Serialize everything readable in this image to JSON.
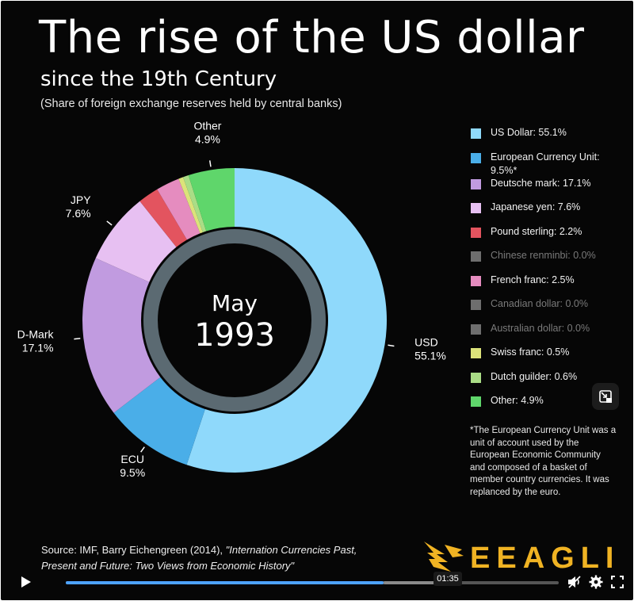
{
  "title": "The rise of the US dollar",
  "subtitle": "since the 19th Century",
  "note": "(Share of foreign exchange reserves held by central banks)",
  "center": {
    "month": "May",
    "year": "1993"
  },
  "chart_data": {
    "type": "pie",
    "title": "The rise of the US dollar",
    "subtitle": "since the 19th Century",
    "categories": [
      "US Dollar",
      "European Currency Unit",
      "Deutsche mark",
      "Japanese yen",
      "Pound sterling",
      "Chinese renminbi",
      "French franc",
      "Canadian dollar",
      "Australian dollar",
      "Swiss franc",
      "Dutch guilder",
      "Other"
    ],
    "values": [
      55.1,
      9.5,
      17.1,
      7.6,
      2.2,
      0.0,
      2.5,
      0.0,
      0.0,
      0.5,
      0.6,
      4.9
    ],
    "colors": [
      "#8fd9fb",
      "#4aaee8",
      "#c19be0",
      "#e7c0f2",
      "#e3545f",
      "#6e6e6e",
      "#e58cbf",
      "#6e6e6e",
      "#6e6e6e",
      "#dce37a",
      "#aadd86",
      "#5fd66b"
    ],
    "labels": [
      {
        "cat": "US Dollar",
        "name": "USD",
        "value": "55.1%"
      },
      {
        "cat": "European Currency Unit",
        "name": "ECU",
        "value": "9.5%"
      },
      {
        "cat": "Deutsche mark",
        "name": "D-Mark",
        "value": "17.1%"
      },
      {
        "cat": "Japanese yen",
        "name": "JPY",
        "value": "7.6%"
      },
      {
        "cat": "Other",
        "name": "Other",
        "value": "4.9%"
      }
    ],
    "legend_position": "right",
    "date": "May 1993"
  },
  "legend": [
    {
      "label": "US Dollar: 55.1%",
      "color": "#8fd9fb",
      "dim": false
    },
    {
      "label": "European Currency Unit: 9.5%*",
      "color": "#4aaee8",
      "dim": false
    },
    {
      "label": "Deutsche mark: 17.1%",
      "color": "#c19be0",
      "dim": false
    },
    {
      "label": "Japanese yen: 7.6%",
      "color": "#e7c0f2",
      "dim": false
    },
    {
      "label": "Pound sterling: 2.2%",
      "color": "#e3545f",
      "dim": false
    },
    {
      "label": "Chinese renminbi: 0.0%",
      "color": "#6e6e6e",
      "dim": true
    },
    {
      "label": "French franc: 2.5%",
      "color": "#e58cbf",
      "dim": false
    },
    {
      "label": "Canadian dollar: 0.0%",
      "color": "#6e6e6e",
      "dim": true
    },
    {
      "label": "Australian dollar: 0.0%",
      "color": "#6e6e6e",
      "dim": true
    },
    {
      "label": "Swiss franc: 0.5%",
      "color": "#dce37a",
      "dim": false
    },
    {
      "label": "Dutch guilder: 0.6%",
      "color": "#aadd86",
      "dim": false
    },
    {
      "label": "Other: 4.9%",
      "color": "#5fd66b",
      "dim": false
    }
  ],
  "footnote": "*The European Currency Unit was a unit of account used by the European Economic Community and composed of a basket of member country currencies. It was replanced by the euro.",
  "source": {
    "prefix": "Source: IMF, Barry Eichengreen (2014), ",
    "title": "\"Internation Currencies Past, Present and Future: Two Views from Economic History\""
  },
  "brand": "EEAGLI",
  "player": {
    "time": "01:35",
    "progress": 0.645,
    "buffered": 0.75,
    "icons": [
      "play-icon",
      "mute-icon",
      "settings-icon",
      "fullscreen-icon",
      "picture-in-picture-icon"
    ]
  }
}
